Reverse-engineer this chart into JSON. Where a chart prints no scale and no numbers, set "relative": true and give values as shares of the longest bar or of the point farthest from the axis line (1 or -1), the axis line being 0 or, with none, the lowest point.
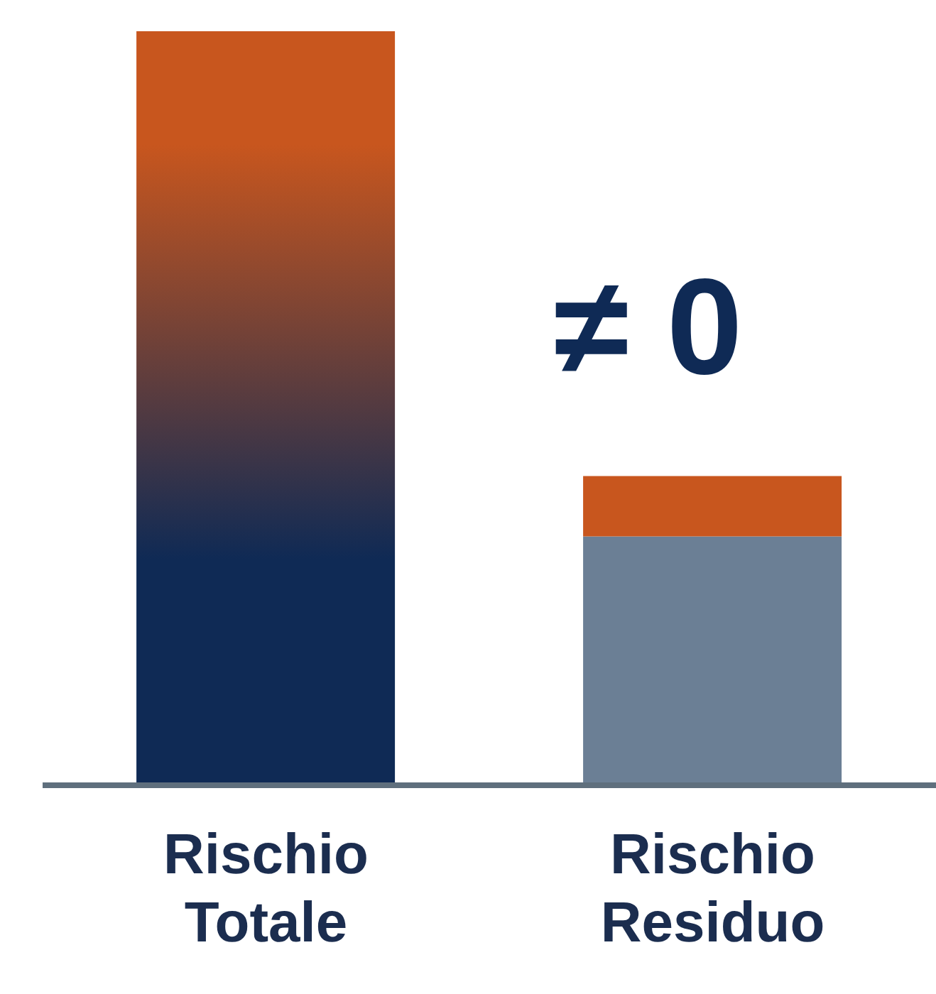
{
  "chart_data": {
    "type": "bar",
    "relative": true,
    "stacked": true,
    "categories": [
      "Rischio Totale",
      "Rischio Residuo"
    ],
    "series": [
      {
        "colors": [
          "#0f2a55",
          "#6b7f95"
        ],
        "values": [
          1,
          0.33
        ]
      },
      {
        "color": "#c8561e",
        "values": [
          null,
          0.08
        ]
      }
    ],
    "annotations": [
      "≠ 0"
    ]
  }
}
